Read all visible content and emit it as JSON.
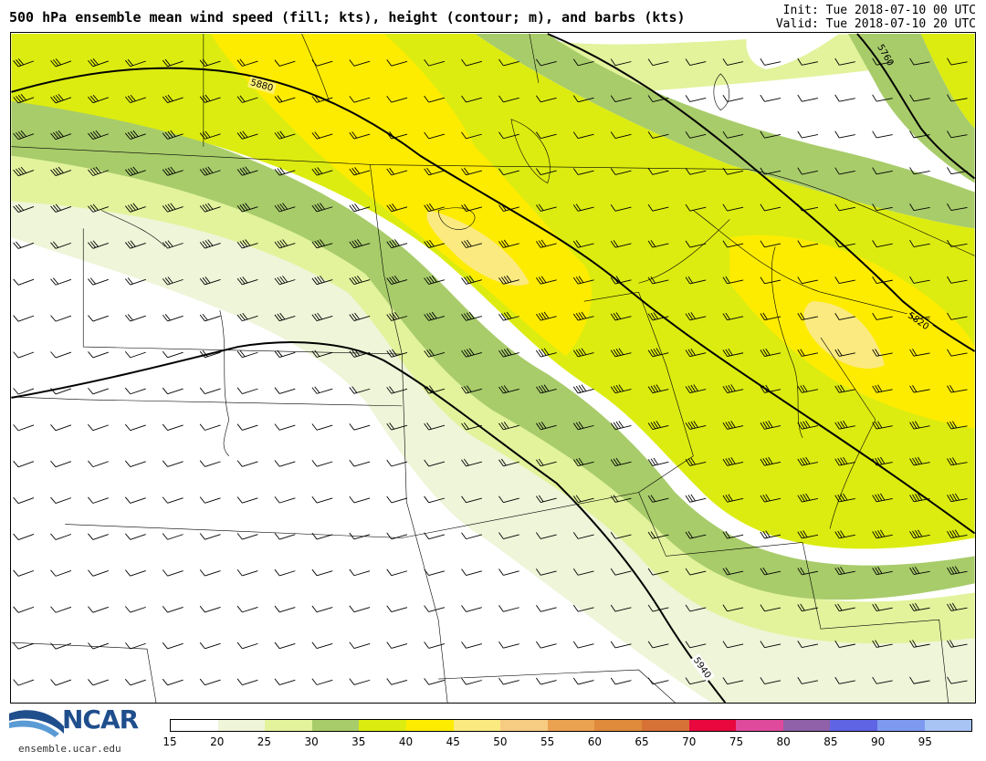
{
  "title": "500 hPa ensemble mean wind speed (fill; kts), height (contour; m), and barbs (kts)",
  "init": "Init: Tue 2018-07-10 00 UTC",
  "valid": "Valid: Tue 2018-07-10 20 UTC",
  "logo": {
    "name": "NCAR",
    "url": "ensemble.ucar.edu"
  },
  "colorbar": {
    "levels": [
      "15",
      "20",
      "25",
      "30",
      "35",
      "40",
      "45",
      "50",
      "55",
      "60",
      "65",
      "70",
      "75",
      "80",
      "85",
      "90",
      "95"
    ],
    "colors": [
      "#ffffff",
      "#eef5d8",
      "#e2f39c",
      "#a8cc6a",
      "#dcec10",
      "#feec00",
      "#fbea80",
      "#f6cc82",
      "#eba250",
      "#e08a3c",
      "#d77236",
      "#e8083e",
      "#e04a9c",
      "#9060a8",
      "#5e64e4",
      "#7e9af0",
      "#a8c4f4"
    ]
  },
  "contours": [
    "5760",
    "5820",
    "5880",
    "5940"
  ],
  "wind_fill": {
    "white": "#ffffff",
    "c20": "#eef5d8",
    "c25": "#e2f39c",
    "c30": "#a8cc6a",
    "c35": "#dcec10",
    "c40": "#feec00",
    "c45": "#fbea80"
  }
}
